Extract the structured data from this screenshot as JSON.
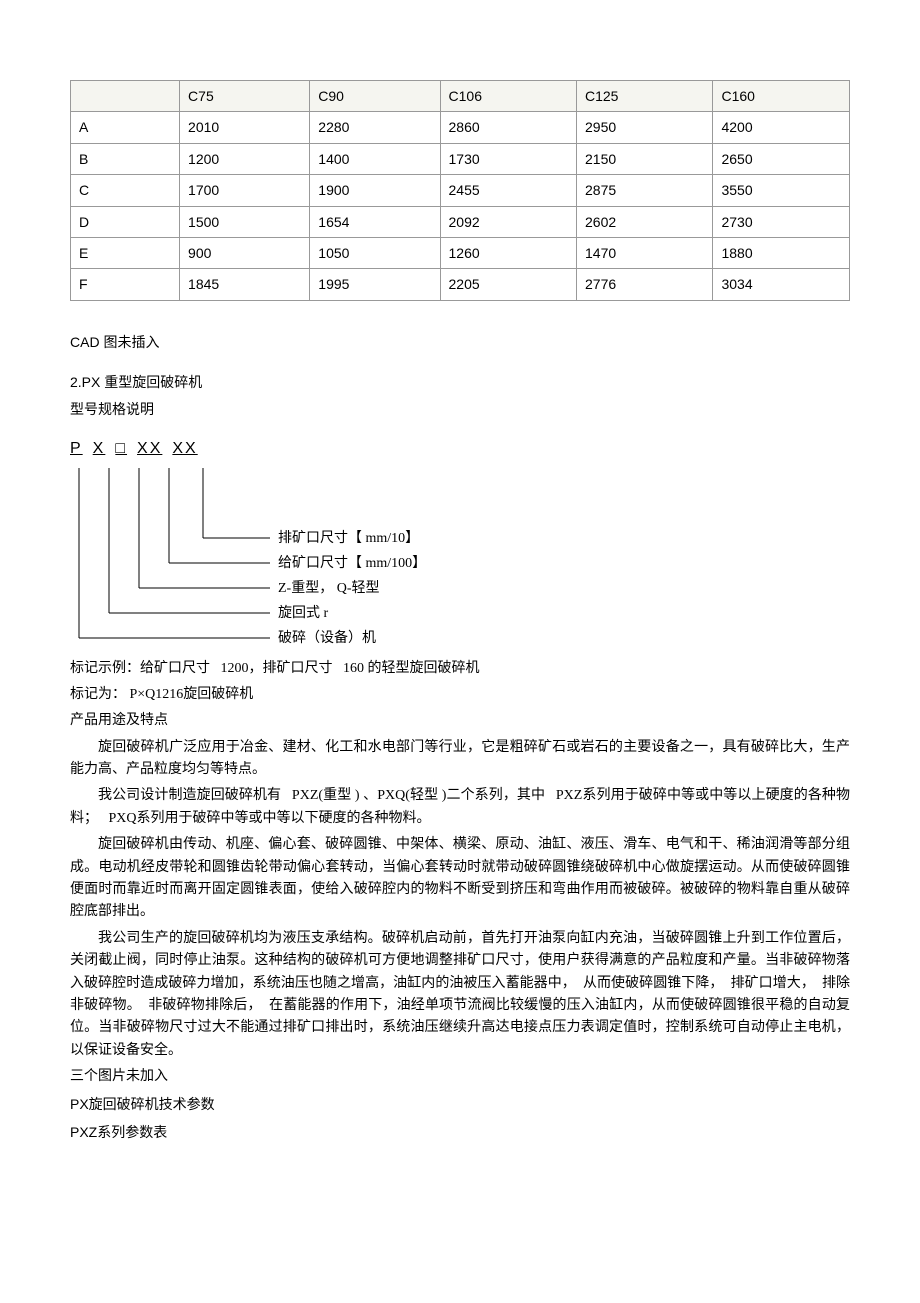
{
  "table": {
    "header": [
      "",
      "C75",
      "C90",
      "C106",
      "C125",
      "C160"
    ],
    "rows": [
      [
        "A",
        "2010",
        "2280",
        "2860",
        "2950",
        "4200"
      ],
      [
        "B",
        "1200",
        "1400",
        "1730",
        "2150",
        "2650"
      ],
      [
        "C",
        "1700",
        "1900",
        "2455",
        "2875",
        "3550"
      ],
      [
        "D",
        "1500",
        "1654",
        "2092",
        "2602",
        "2730"
      ],
      [
        "E",
        "900",
        "1050",
        "1260",
        "1470",
        "1880"
      ],
      [
        "F",
        "1845",
        "1995",
        "2205",
        "2776",
        "3034"
      ]
    ],
    "header_bg": "#f5f5f0",
    "border_color": "#999999"
  },
  "cad_note": "CAD 图未插入",
  "section2_title": "2.PX 重型旋回破碎机",
  "spec_label": "型号规格说明",
  "model_code": {
    "p": "P",
    "x": "X",
    "box": "□",
    "xx1": "XX",
    "xx2": "XX"
  },
  "diagram": {
    "lines": [
      "排矿口尺寸【 mm/10】",
      "给矿口尺寸【 mm/100】",
      "Z-重型， Q-轻型",
      "旋回式 r",
      "破碎（设备）机"
    ]
  },
  "example_line1_a": "标记示例：给矿口尺寸",
  "example_line1_b": "1200，排矿口尺寸",
  "example_line1_c": "160 的轻型旋回破碎机",
  "example_line2": "标记为： P×Q1216旋回破碎机",
  "subtitle": "产品用途及特点",
  "para1": "旋回破碎机广泛应用于冶金、建材、化工和水电部门等行业，它是粗碎矿石或岩石的主要设备之一，具有破碎比大，生产能力高、产品粒度均匀等特点。",
  "para2_a": "我公司设计制造旋回破碎机有",
  "para2_b": "PXZ(重型 ) 、PXQ(轻型 )二个系列，其中",
  "para2_c": "PXZ系列用于破碎中等或中等以上硬度的各种物料；",
  "para2_d": "PXQ系列用于破碎中等或中等以下硬度的各种物料。",
  "para3": "旋回破碎机由传动、机座、偏心套、破碎圆锥、中架体、横梁、原动、油缸、液压、滑车、电气和干、稀油润滑等部分组成。电动机经皮带轮和圆锥齿轮带动偏心套转动，当偏心套转动时就带动破碎圆锥绕破碎机中心做旋摆运动。从而使破碎圆锥便面时而靠近时而离开固定圆锥表面，使给入破碎腔内的物料不断受到挤压和弯曲作用而被破碎。被破碎的物料靠自重从破碎腔底部排出。",
  "para4_a": "我公司生产的旋回破碎机均为液压支承结构。破碎机启动前，首先打开油泵向缸内充油，当破碎圆锥上升到工作位置后，关闭截止阀，同时停止油泵。这种结构的破碎机可方便地调整排矿口尺寸，使用户获得满意的产品粒度和产量。当非破碎物落入破碎腔时造成破碎力增加，系统油压也随之增高，油缸内的油被压入蓄能器中，",
  "para4_b": "从而使破碎圆锥下降，",
  "para4_c": "排矿口增大，",
  "para4_d": "排除非破碎物。",
  "para4_e": "非破碎物排除后，",
  "para4_f": "在蓄能器的作用下，油经单项节流阀比较缓慢的压入油缸内，从而使破碎圆锥很平稳的自动复位。当非破碎物尺寸过大不能通过排矿口排出时，系统油压继续升高达电接点压力表调定值时，控制系统可自动停止主电机，以保证设备安全。",
  "img_note": "三个图片未加入",
  "tech_title": "PX旋回破碎机技术参数",
  "pxz_title": "PXZ系列参数表"
}
